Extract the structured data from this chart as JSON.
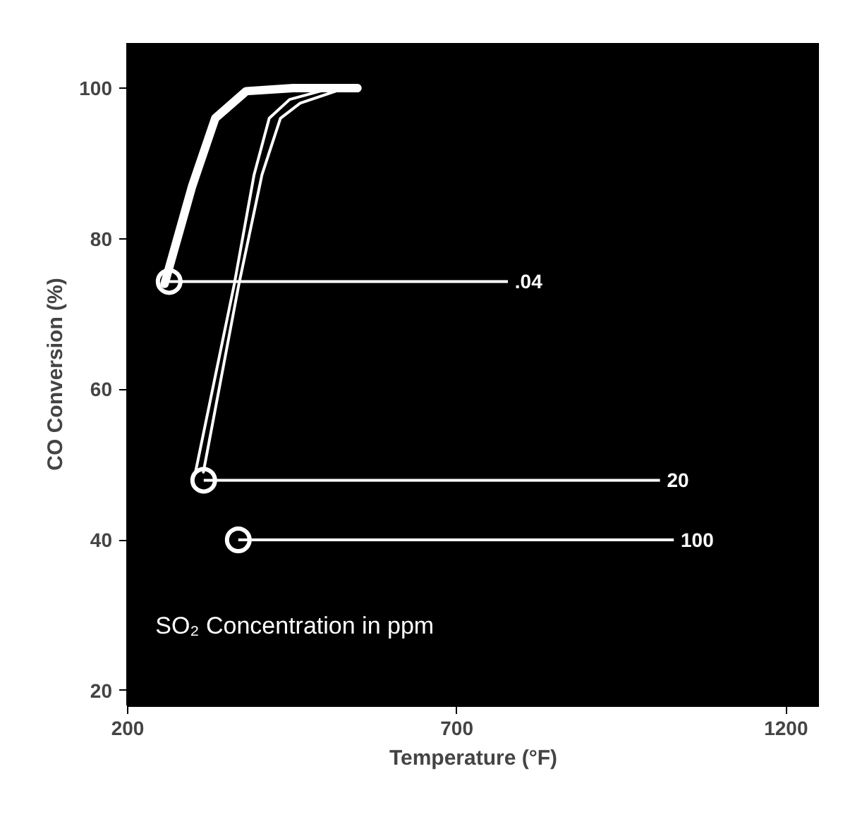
{
  "chart_data": {
    "type": "line",
    "xlabel": "Temperature (°F)",
    "ylabel": "CO Conversion (%)",
    "legend_title": "SO₂ Concentration in ppm",
    "legend": "right",
    "xlim": [
      200,
      1250
    ],
    "ylim": [
      18,
      106
    ],
    "xticks": [
      200,
      700,
      1200
    ],
    "yticks": [
      20,
      40,
      60,
      80,
      100
    ],
    "grid": false,
    "line_style": "solid",
    "series": [
      {
        "name": ".04",
        "color": "#ffffff",
        "x": [
          256,
          298,
          333,
          380,
          451,
          549
        ],
        "values": [
          74,
          87,
          96,
          99.6,
          100,
          100
        ]
      },
      {
        "name": "20",
        "color": "#ffffff",
        "x": [
          303,
          362,
          392,
          415,
          446,
          509
        ],
        "values": [
          49,
          74,
          88.5,
          96,
          98.5,
          100
        ]
      },
      {
        "name": "100",
        "color": "#ffffff",
        "x": [
          315,
          369,
          404,
          432,
          462,
          516
        ],
        "values": [
          49,
          74,
          88.5,
          96,
          98,
          99.6
        ]
      }
    ]
  }
}
